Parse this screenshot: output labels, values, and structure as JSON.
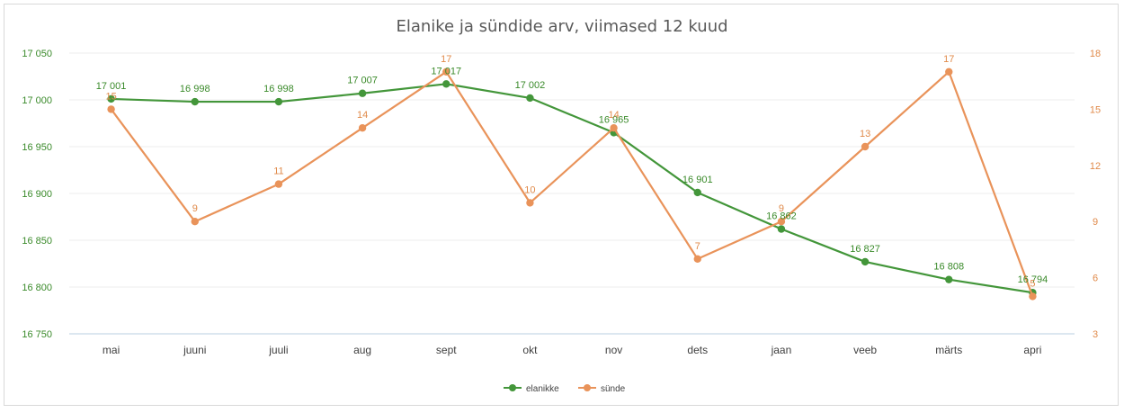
{
  "chart_data": {
    "type": "line",
    "title": "Elanike ja sündide arv, viimased 12 kuud",
    "categories": [
      "mai",
      "juuni",
      "juuli",
      "aug",
      "sept",
      "okt",
      "nov",
      "dets",
      "jaan",
      "veeb",
      "märts",
      "apri"
    ],
    "series": [
      {
        "name": "elanikke",
        "axis": "left",
        "color": "#43963a",
        "values": [
          17001,
          16998,
          16998,
          17007,
          17017,
          17002,
          16965,
          16901,
          16862,
          16827,
          16808,
          16794
        ],
        "labels": [
          "17 001",
          "16 998",
          "16 998",
          "17 007",
          "17 017",
          "17 002",
          "16 965",
          "16 901",
          "16 862",
          "16 827",
          "16 808",
          "16 794"
        ]
      },
      {
        "name": "sünde",
        "axis": "right",
        "color": "#e9935a",
        "values": [
          15,
          9,
          11,
          14,
          17,
          10,
          14,
          7,
          9,
          13,
          17,
          5
        ],
        "labels": [
          "15",
          "9",
          "11",
          "14",
          "17",
          "10",
          "14",
          "7",
          "9",
          "13",
          "17",
          "5"
        ]
      }
    ],
    "y_left": {
      "min": 16750,
      "max": 17050,
      "ticks": [
        16750,
        16800,
        16850,
        16900,
        16950,
        17000,
        17050
      ],
      "tick_labels": [
        "16 750",
        "16 800",
        "16 850",
        "16 900",
        "16 950",
        "17 000",
        "17 050"
      ]
    },
    "y_right": {
      "min": 3,
      "max": 18,
      "ticks": [
        3,
        6,
        9,
        12,
        15,
        18
      ],
      "tick_labels": [
        "3",
        "6",
        "9",
        "12",
        "15",
        "18"
      ]
    },
    "grid": true,
    "legend_position": "bottom"
  }
}
